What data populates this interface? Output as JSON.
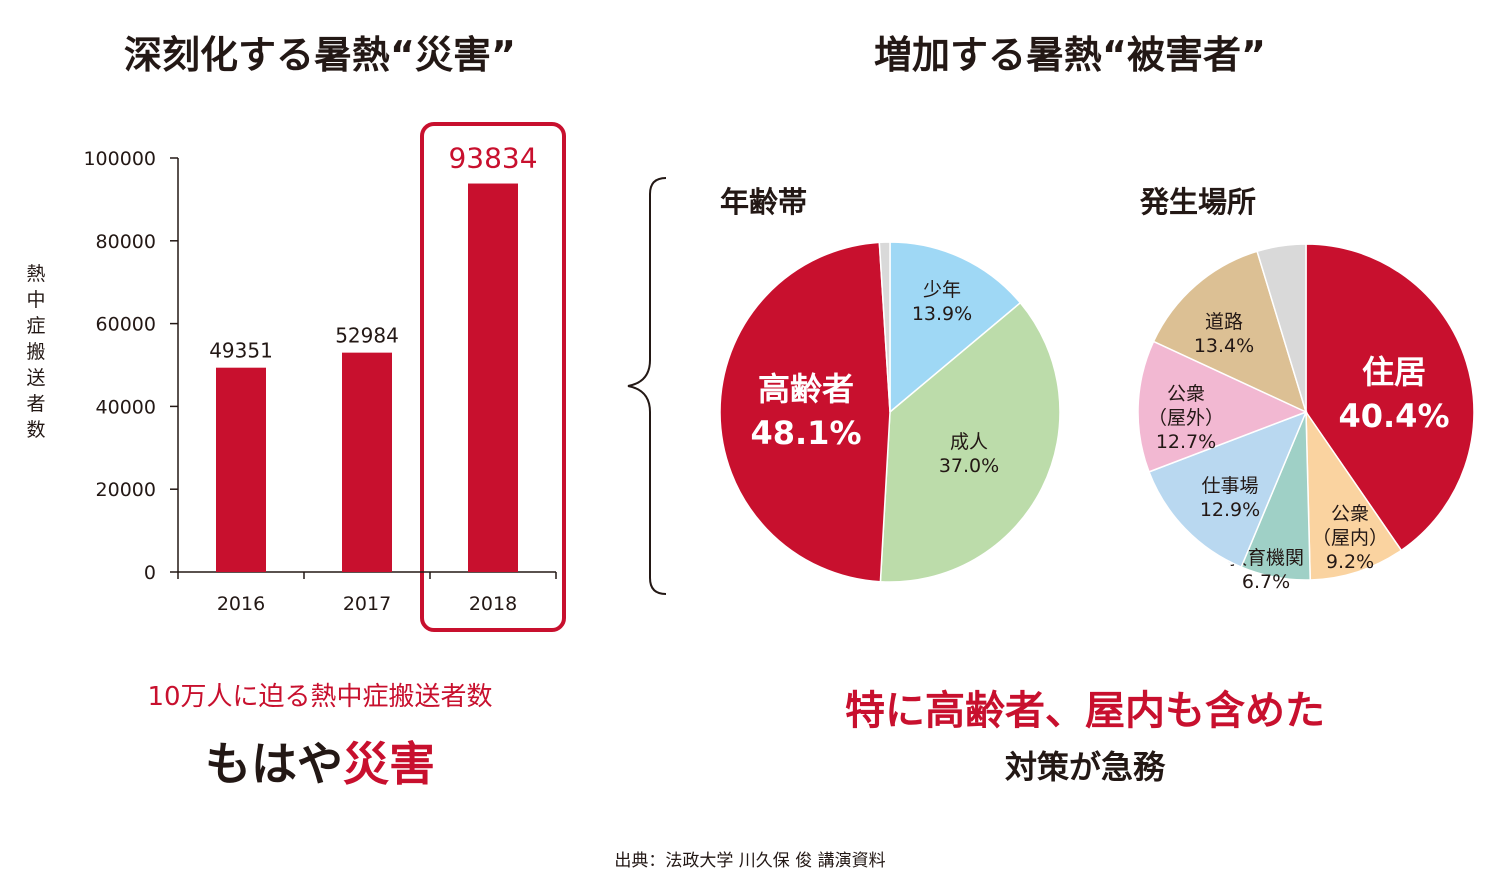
{
  "left": {
    "heading": "深刻化する暑熱“災害”",
    "caption_line1": "10万人に迫る熱中症搬送者数",
    "caption_line2_a": "もはや",
    "caption_line2_b": "災害"
  },
  "right": {
    "heading": "増加する暑熱“被害者”",
    "caption_line1": "特に高齢者、屋内も含めた",
    "caption_line2": "対策が急務"
  },
  "source": "出典：法政大学 川久保 俊 講演資料",
  "colors": {
    "accent_red": "#c8102e",
    "text": "#231815"
  },
  "chart_data": [
    {
      "type": "bar",
      "categories": [
        "2016",
        "2017",
        "2018"
      ],
      "values": [
        49351,
        52984,
        93834
      ],
      "value_labels": [
        "49351",
        "52984",
        "93834"
      ],
      "ylabel_chars": [
        "熱",
        "中",
        "症",
        "搬",
        "送",
        "者",
        "数"
      ],
      "yticks": [
        "0",
        "20000",
        "40000",
        "60000",
        "80000",
        "100000"
      ],
      "ylim": [
        0,
        100000
      ],
      "highlight": "2018",
      "bar_color": "#c8102e",
      "grid": false
    },
    {
      "type": "pie",
      "title": "年齢帯",
      "slices": [
        {
          "label": "少年",
          "value": 13.9,
          "value_label": "13.9%",
          "color": "#9fd8f5"
        },
        {
          "label": "成人",
          "value": 37.0,
          "value_label": "37.0%",
          "color": "#bcdcaa"
        },
        {
          "label": "高齢者",
          "value": 48.1,
          "value_label": "48.1%",
          "color": "#c8102e"
        },
        {
          "label": "",
          "value": 1.0,
          "value_label": "",
          "color": "#d9d9d9"
        }
      ]
    },
    {
      "type": "pie",
      "title": "発生場所",
      "slices": [
        {
          "label": "住居",
          "value": 40.4,
          "value_label": "40.4%",
          "color": "#c8102e"
        },
        {
          "label": "公衆\n（屋内）",
          "value": 9.2,
          "value_label": "9.2%",
          "color": "#fad3a0"
        },
        {
          "label": "教育機関",
          "value": 6.7,
          "value_label": "6.7%",
          "color": "#9fd0c6"
        },
        {
          "label": "仕事場",
          "value": 12.9,
          "value_label": "12.9%",
          "color": "#b9d8f0"
        },
        {
          "label": "公衆\n（屋外）",
          "value": 12.7,
          "value_label": "12.7%",
          "color": "#f2b8d2"
        },
        {
          "label": "道路",
          "value": 13.4,
          "value_label": "13.4%",
          "color": "#dcc094"
        },
        {
          "label": "",
          "value": 4.7,
          "value_label": "",
          "color": "#d9d9d9"
        }
      ]
    }
  ]
}
